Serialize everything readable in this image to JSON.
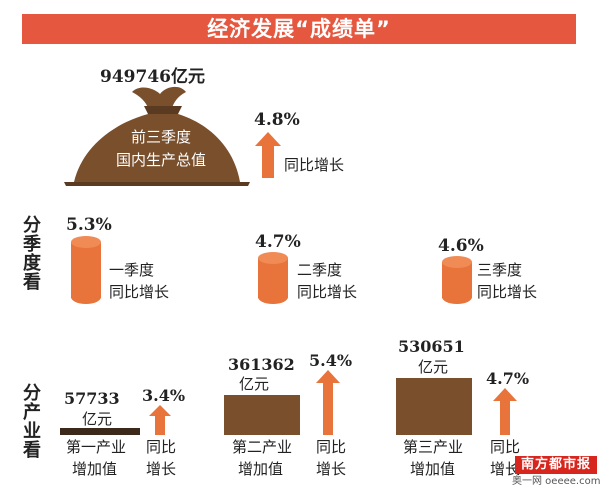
{
  "title": "经济发展“成绩单”",
  "gdp": {
    "value": "949746亿元",
    "bag_line1": "前三季度",
    "bag_line2": "国内生产总值",
    "growth": "4.8%",
    "growth_label": "同比增长"
  },
  "quarterly": {
    "side_label": [
      "分",
      "季",
      "度",
      "看"
    ],
    "items": [
      {
        "pct": "5.3%",
        "name": "一季度",
        "sub": "同比增长"
      },
      {
        "pct": "4.7%",
        "name": "二季度",
        "sub": "同比增长"
      },
      {
        "pct": "4.6%",
        "name": "三季度",
        "sub": "同比增长"
      }
    ]
  },
  "industry": {
    "side_label": [
      "分",
      "产",
      "业",
      "看"
    ],
    "items": [
      {
        "value": "57733",
        "unit": "亿元",
        "pct": "3.4%",
        "name1": "第一产业",
        "name2": "增加值",
        "sub1": "同比",
        "sub2": "增长"
      },
      {
        "value": "361362",
        "unit": "亿元",
        "pct": "5.4%",
        "name1": "第二产业",
        "name2": "增加值",
        "sub1": "同比",
        "sub2": "增长"
      },
      {
        "value": "530651",
        "unit": "亿元",
        "pct": "4.7%",
        "name1": "第三产业",
        "name2": "增加值",
        "sub1": "同比",
        "sub2": "增长"
      }
    ]
  },
  "watermark": {
    "brand": "南方都市报",
    "site": "奥一网 oeeee.com"
  },
  "colors": {
    "title_bg": "#e5573f",
    "orange": "#e8743b",
    "brown": "#7a4f2c"
  }
}
